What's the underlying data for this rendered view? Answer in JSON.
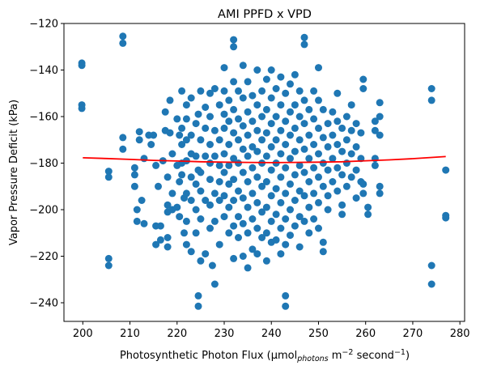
{
  "chart_data": {
    "type": "scatter",
    "title": "AMI PPFD x VPD",
    "xlabel": {
      "main": "Photosynthetic Photon Flux (µmol",
      "sub": "photons",
      "mid": " m",
      "sup1": "−2",
      "tail": " second",
      "sup2": "−1",
      "end": ")"
    },
    "ylabel": "Vapor Pressure Deficit (kPa)",
    "xlim": [
      196,
      281
    ],
    "ylim": [
      -248,
      -120
    ],
    "x_ticks": [
      200,
      210,
      220,
      230,
      240,
      250,
      260,
      270,
      280
    ],
    "x_tick_labels": [
      "200",
      "210",
      "220",
      "230",
      "240",
      "250",
      "260",
      "270",
      "280"
    ],
    "y_ticks": [
      -240,
      -220,
      -200,
      -180,
      -160,
      -140,
      -120
    ],
    "y_tick_labels": [
      "−240",
      "−220",
      "−200",
      "−180",
      "−160",
      "−140",
      "−120"
    ],
    "colors": {
      "points": "#1f77b4",
      "fit": "#ff0000"
    },
    "fit_line": {
      "x": [
        200,
        205,
        210,
        215,
        220,
        225,
        230,
        235,
        240,
        245,
        250,
        255,
        260,
        265,
        270,
        277
      ],
      "y": [
        -177.7,
        -178.0,
        -178.4,
        -178.8,
        -179.1,
        -179.4,
        -179.6,
        -179.7,
        -179.8,
        -179.7,
        -179.6,
        -179.4,
        -179.0,
        -178.6,
        -178.1,
        -177.2
      ]
    },
    "points": [
      [
        199.8,
        -137
      ],
      [
        199.8,
        -138
      ],
      [
        199.8,
        -155
      ],
      [
        199.8,
        -156.5
      ],
      [
        205.5,
        -183.5
      ],
      [
        205.5,
        -186
      ],
      [
        205.5,
        -221
      ],
      [
        205.5,
        -224
      ],
      [
        208.5,
        -125.5
      ],
      [
        208.5,
        -128.5
      ],
      [
        208.5,
        -169
      ],
      [
        208.5,
        -174
      ],
      [
        211,
        -182
      ],
      [
        211,
        -185
      ],
      [
        211,
        -190
      ],
      [
        211.5,
        -200
      ],
      [
        211.5,
        -205
      ],
      [
        212,
        -166.5
      ],
      [
        212,
        -170
      ],
      [
        212.5,
        -196
      ],
      [
        213,
        -178
      ],
      [
        213,
        -206
      ],
      [
        214,
        -168
      ],
      [
        214.5,
        -172
      ],
      [
        215,
        -168
      ],
      [
        215.5,
        -181
      ],
      [
        215.5,
        -207
      ],
      [
        215.5,
        -215
      ],
      [
        216,
        -190
      ],
      [
        216.5,
        -207
      ],
      [
        216.5,
        -213
      ],
      [
        217,
        -179
      ],
      [
        217.5,
        -158
      ],
      [
        217.5,
        -166
      ],
      [
        218,
        -186
      ],
      [
        218,
        -198
      ],
      [
        218,
        -201
      ],
      [
        218,
        -212
      ],
      [
        218,
        -216
      ],
      [
        218.5,
        -153
      ],
      [
        218.5,
        -167
      ],
      [
        219,
        -176
      ],
      [
        219,
        -193
      ],
      [
        219,
        -200
      ],
      [
        220,
        -161
      ],
      [
        220,
        -181
      ],
      [
        220,
        -199
      ],
      [
        220.5,
        -168
      ],
      [
        220.5,
        -188
      ],
      [
        220.5,
        -203
      ],
      [
        221,
        -149
      ],
      [
        221,
        -165
      ],
      [
        221,
        -172
      ],
      [
        221,
        -180
      ],
      [
        221,
        -185
      ],
      [
        221.5,
        -195
      ],
      [
        221.5,
        -210
      ],
      [
        222,
        -155
      ],
      [
        222,
        -161
      ],
      [
        222,
        -170
      ],
      [
        222,
        -179
      ],
      [
        222,
        -193
      ],
      [
        222,
        -205
      ],
      [
        222,
        -215
      ],
      [
        223,
        -152
      ],
      [
        223,
        -168
      ],
      [
        223,
        -176
      ],
      [
        223,
        -186
      ],
      [
        223,
        -196
      ],
      [
        223,
        -218
      ],
      [
        224,
        -163
      ],
      [
        224,
        -177
      ],
      [
        224,
        -189
      ],
      [
        224,
        -200
      ],
      [
        224,
        -210
      ],
      [
        224.5,
        -159
      ],
      [
        224.5,
        -183
      ],
      [
        224.5,
        -237
      ],
      [
        224.5,
        -241.5
      ],
      [
        225,
        -149
      ],
      [
        225,
        -170
      ],
      [
        225,
        -184
      ],
      [
        225,
        -192
      ],
      [
        225,
        -204
      ],
      [
        225,
        -222
      ],
      [
        226,
        -156
      ],
      [
        226,
        -165
      ],
      [
        226,
        -177
      ],
      [
        226,
        -196
      ],
      [
        226,
        -219
      ],
      [
        227,
        -150
      ],
      [
        227,
        -160
      ],
      [
        227,
        -172
      ],
      [
        227,
        -180
      ],
      [
        227,
        -187
      ],
      [
        227,
        -198
      ],
      [
        227,
        -208
      ],
      [
        227.5,
        -224
      ],
      [
        228,
        -148
      ],
      [
        228,
        -166
      ],
      [
        228,
        -177
      ],
      [
        228,
        -193
      ],
      [
        228,
        -205
      ],
      [
        228,
        -232
      ],
      [
        229,
        -155
      ],
      [
        229,
        -170
      ],
      [
        229,
        -181
      ],
      [
        229,
        -188
      ],
      [
        229,
        -196
      ],
      [
        229,
        -215
      ],
      [
        230,
        -139
      ],
      [
        230,
        -149
      ],
      [
        230,
        -159
      ],
      [
        230,
        -165
      ],
      [
        230,
        -176
      ],
      [
        230,
        -184
      ],
      [
        230,
        -194
      ],
      [
        230,
        -203
      ],
      [
        231,
        -153
      ],
      [
        231,
        -162
      ],
      [
        231,
        -172
      ],
      [
        231,
        -181
      ],
      [
        231,
        -189
      ],
      [
        231,
        -199
      ],
      [
        231,
        -210
      ],
      [
        232,
        -127
      ],
      [
        232,
        -130
      ],
      [
        232,
        -145
      ],
      [
        232,
        -157
      ],
      [
        232,
        -167
      ],
      [
        232,
        -178
      ],
      [
        232,
        -187
      ],
      [
        232,
        -196
      ],
      [
        232,
        -207
      ],
      [
        232,
        -221
      ],
      [
        233,
        -149
      ],
      [
        233,
        -161
      ],
      [
        233,
        -170
      ],
      [
        233,
        -180
      ],
      [
        233,
        -192
      ],
      [
        233,
        -203
      ],
      [
        233,
        -212
      ],
      [
        234,
        -138
      ],
      [
        234,
        -152
      ],
      [
        234,
        -164
      ],
      [
        234,
        -174
      ],
      [
        234,
        -184
      ],
      [
        234,
        -195
      ],
      [
        234,
        -206
      ],
      [
        234,
        -220
      ],
      [
        235,
        -145
      ],
      [
        235,
        -158
      ],
      [
        235,
        -168
      ],
      [
        235,
        -177
      ],
      [
        235,
        -188
      ],
      [
        235,
        -199
      ],
      [
        235,
        -210
      ],
      [
        235,
        -225
      ],
      [
        236,
        -151
      ],
      [
        236,
        -162
      ],
      [
        236,
        -173
      ],
      [
        236,
        -182
      ],
      [
        236,
        -193
      ],
      [
        236,
        -204
      ],
      [
        236,
        -217
      ],
      [
        237,
        -140
      ],
      [
        237,
        -155
      ],
      [
        237,
        -166
      ],
      [
        237,
        -175
      ],
      [
        237,
        -186
      ],
      [
        237,
        -197
      ],
      [
        237,
        -208
      ],
      [
        237,
        -219
      ],
      [
        238,
        -149
      ],
      [
        238,
        -160
      ],
      [
        238,
        -170
      ],
      [
        238,
        -180
      ],
      [
        238,
        -190
      ],
      [
        238,
        -201
      ],
      [
        238,
        -212
      ],
      [
        239,
        -144
      ],
      [
        239,
        -157
      ],
      [
        239,
        -167
      ],
      [
        239,
        -177
      ],
      [
        239,
        -188
      ],
      [
        239,
        -199
      ],
      [
        239,
        -210
      ],
      [
        239,
        -222
      ],
      [
        240,
        -140
      ],
      [
        240,
        -152
      ],
      [
        240,
        -163
      ],
      [
        240,
        -173
      ],
      [
        240,
        -183
      ],
      [
        240,
        -194
      ],
      [
        240,
        -205
      ],
      [
        240,
        -214
      ],
      [
        241,
        -148
      ],
      [
        241,
        -160
      ],
      [
        241,
        -170
      ],
      [
        241,
        -180
      ],
      [
        241,
        -191
      ],
      [
        241,
        -202
      ],
      [
        241,
        -213
      ],
      [
        242,
        -143
      ],
      [
        242,
        -155
      ],
      [
        242,
        -166
      ],
      [
        242,
        -176
      ],
      [
        242,
        -186
      ],
      [
        242,
        -197
      ],
      [
        242,
        -208
      ],
      [
        242,
        -219
      ],
      [
        243,
        -150
      ],
      [
        243,
        -162
      ],
      [
        243,
        -172
      ],
      [
        243,
        -182
      ],
      [
        243,
        -193
      ],
      [
        243,
        -204
      ],
      [
        243,
        -215
      ],
      [
        243,
        -237
      ],
      [
        243,
        -241.5
      ],
      [
        244,
        -146
      ],
      [
        244,
        -158
      ],
      [
        244,
        -168
      ],
      [
        244,
        -178
      ],
      [
        244,
        -189
      ],
      [
        244,
        -200
      ],
      [
        244,
        -211
      ],
      [
        245,
        -142
      ],
      [
        245,
        -155
      ],
      [
        245,
        -165
      ],
      [
        245,
        -175
      ],
      [
        245,
        -185
      ],
      [
        245,
        -196
      ],
      [
        245,
        -207
      ],
      [
        246,
        -149
      ],
      [
        246,
        -160
      ],
      [
        246,
        -170
      ],
      [
        246,
        -181
      ],
      [
        246,
        -192
      ],
      [
        246,
        -203
      ],
      [
        246,
        -216
      ],
      [
        247,
        -126
      ],
      [
        247,
        -129
      ],
      [
        247,
        -153
      ],
      [
        247,
        -163
      ],
      [
        247,
        -174
      ],
      [
        247,
        -184
      ],
      [
        247,
        -194
      ],
      [
        247,
        -205
      ],
      [
        248,
        -157
      ],
      [
        248,
        -168
      ],
      [
        248,
        -178
      ],
      [
        248,
        -188
      ],
      [
        248,
        -199
      ],
      [
        248,
        -210
      ],
      [
        249,
        -149
      ],
      [
        249,
        -161
      ],
      [
        249,
        -172
      ],
      [
        249,
        -182
      ],
      [
        249,
        -193
      ],
      [
        249,
        -204
      ],
      [
        250,
        -139
      ],
      [
        250,
        -153
      ],
      [
        250,
        -165
      ],
      [
        250,
        -176
      ],
      [
        250,
        -186
      ],
      [
        250,
        -197
      ],
      [
        250,
        -208
      ],
      [
        251,
        -157
      ],
      [
        251,
        -169
      ],
      [
        251,
        -180
      ],
      [
        251,
        -190
      ],
      [
        251,
        -214
      ],
      [
        251,
        -218
      ],
      [
        252,
        -163
      ],
      [
        252,
        -173
      ],
      [
        252,
        -183
      ],
      [
        252,
        -194
      ],
      [
        252,
        -200
      ],
      [
        253,
        -158
      ],
      [
        253,
        -168
      ],
      [
        253,
        -178
      ],
      [
        253,
        -188
      ],
      [
        254,
        -150
      ],
      [
        254,
        -162
      ],
      [
        254,
        -172
      ],
      [
        254,
        -182
      ],
      [
        254,
        -192
      ],
      [
        255,
        -165
      ],
      [
        255,
        -175
      ],
      [
        255,
        -185
      ],
      [
        255,
        -198
      ],
      [
        255,
        -202
      ],
      [
        256,
        -160
      ],
      [
        256,
        -170
      ],
      [
        256,
        -180
      ],
      [
        256,
        -190
      ],
      [
        257,
        -155
      ],
      [
        257,
        -166
      ],
      [
        257,
        -176
      ],
      [
        257,
        -186
      ],
      [
        258,
        -163
      ],
      [
        258,
        -173
      ],
      [
        258,
        -183
      ],
      [
        258,
        -195
      ],
      [
        259,
        -167
      ],
      [
        259,
        -178
      ],
      [
        259,
        -188
      ],
      [
        259.5,
        -144
      ],
      [
        259.5,
        -148
      ],
      [
        259.5,
        -189
      ],
      [
        259.5,
        -193
      ],
      [
        260.5,
        -199
      ],
      [
        260.5,
        -202
      ],
      [
        262,
        -162
      ],
      [
        262,
        -166
      ],
      [
        262,
        -178
      ],
      [
        262,
        -181
      ],
      [
        263,
        -154
      ],
      [
        263,
        -160
      ],
      [
        263,
        -168
      ],
      [
        263,
        -190
      ],
      [
        263,
        -193
      ],
      [
        274,
        -148
      ],
      [
        274,
        -153
      ],
      [
        274,
        -224
      ],
      [
        274,
        -232
      ],
      [
        277,
        -183
      ],
      [
        277,
        -202.5
      ],
      [
        277,
        -203.5
      ]
    ]
  }
}
